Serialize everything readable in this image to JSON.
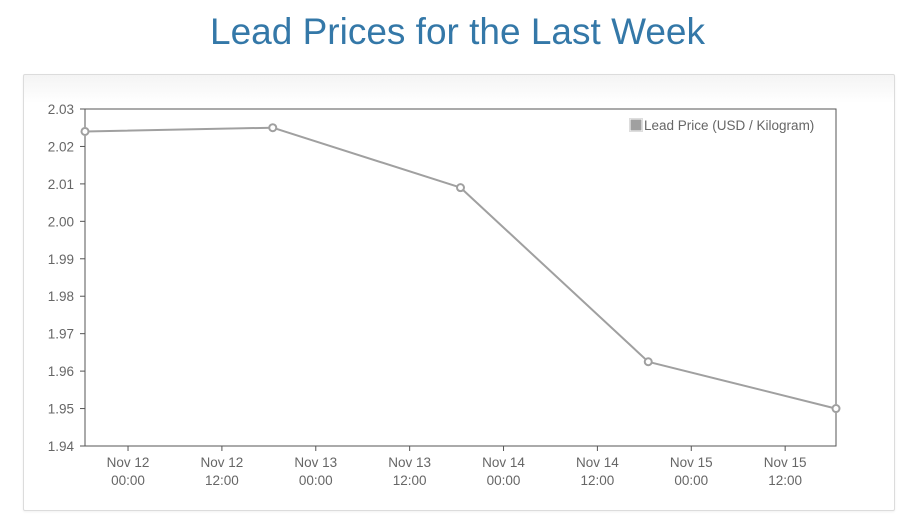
{
  "page": {
    "title": "Lead Prices for the Last Week"
  },
  "colors": {
    "title": "#3478a8",
    "series_line": "#a0a0a0",
    "grid": "#d9d9d9",
    "axis": "#555555",
    "tick_text": "#666666"
  },
  "chart_data": {
    "type": "line",
    "title": "",
    "xlabel": "",
    "ylabel": "",
    "grid": true,
    "legend_position": "top-right",
    "ylim": [
      1.94,
      2.03
    ],
    "y_ticks": [
      "2.03",
      "2.02",
      "2.01",
      "2.00",
      "1.99",
      "1.98",
      "1.97",
      "1.96",
      "1.95",
      "1.94"
    ],
    "xlim": [
      "2024-11-11 18:30",
      "2024-11-15 18:30"
    ],
    "x_ticks": [
      {
        "value": "2024-11-12 00:00",
        "line1": "Nov 12",
        "line2": "00:00"
      },
      {
        "value": "2024-11-12 12:00",
        "line1": "Nov 12",
        "line2": "12:00"
      },
      {
        "value": "2024-11-13 00:00",
        "line1": "Nov 13",
        "line2": "00:00"
      },
      {
        "value": "2024-11-13 12:00",
        "line1": "Nov 13",
        "line2": "12:00"
      },
      {
        "value": "2024-11-14 00:00",
        "line1": "Nov 14",
        "line2": "00:00"
      },
      {
        "value": "2024-11-14 12:00",
        "line1": "Nov 14",
        "line2": "12:00"
      },
      {
        "value": "2024-11-15 00:00",
        "line1": "Nov 15",
        "line2": "00:00"
      },
      {
        "value": "2024-11-15 12:00",
        "line1": "Nov 15",
        "line2": "12:00"
      }
    ],
    "series": [
      {
        "name": "Lead Price (USD / Kilogram)",
        "color": "#a0a0a0",
        "points": [
          {
            "x": "2024-11-11 18:30",
            "y": 2.024
          },
          {
            "x": "2024-11-12 18:30",
            "y": 2.025
          },
          {
            "x": "2024-11-13 18:30",
            "y": 2.009
          },
          {
            "x": "2024-11-14 18:30",
            "y": 1.9625
          },
          {
            "x": "2024-11-15 18:30",
            "y": 1.95
          }
        ]
      }
    ]
  }
}
